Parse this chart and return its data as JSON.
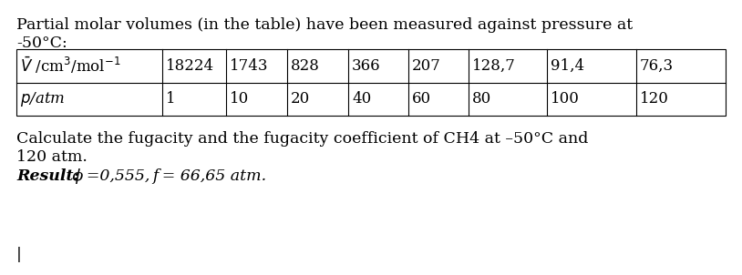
{
  "title_line1": "Partial molar volumes (in the table) have been measured against pressure at",
  "title_line2": "-50°C:",
  "row1_values": [
    "18224",
    "1743",
    "828",
    "366",
    "207",
    "128,7",
    "91,4",
    "76,3"
  ],
  "row2_values": [
    "1",
    "10",
    "20",
    "40",
    "60",
    "80",
    "100",
    "120"
  ],
  "body_line1": "Calculate the fugacity and the fugacity coefficient of CH4 at –50°C and",
  "body_line2": "120 atm.",
  "result_bold": "Result:",
  "result_italic": " ϕ =0,555, f = 66,65 atm.",
  "bg_color": "#ffffff",
  "text_color": "#000000",
  "font_size": 12.5,
  "font_size_table": 12.0
}
